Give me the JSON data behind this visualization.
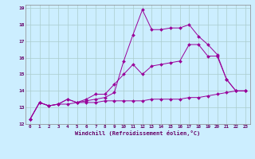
{
  "xlabel": "Windchill (Refroidissement éolien,°C)",
  "background_color": "#cceeff",
  "grid_color": "#aacccc",
  "line_color": "#990099",
  "xlim": [
    -0.5,
    23.5
  ],
  "ylim": [
    12,
    19.2
  ],
  "yticks": [
    12,
    13,
    14,
    15,
    16,
    17,
    18,
    19
  ],
  "xticks": [
    0,
    1,
    2,
    3,
    4,
    5,
    6,
    7,
    8,
    9,
    10,
    11,
    12,
    13,
    14,
    15,
    16,
    17,
    18,
    19,
    20,
    21,
    22,
    23
  ],
  "xticklabels": [
    "0",
    "1",
    "2",
    "3",
    "4",
    "5",
    "6",
    "7",
    "8",
    "9",
    "10",
    "11",
    "12",
    "13",
    "14",
    "15",
    "16",
    "17",
    "18",
    "19",
    "20",
    "21",
    "22",
    "23"
  ],
  "series": [
    {
      "x": [
        0,
        1,
        2,
        3,
        4,
        5,
        6,
        7,
        8,
        9,
        10,
        11,
        12,
        13,
        14,
        15,
        16,
        17,
        18,
        19,
        20,
        21,
        22,
        23
      ],
      "y": [
        12.3,
        13.3,
        13.1,
        13.2,
        13.5,
        13.3,
        13.4,
        13.5,
        13.6,
        13.9,
        15.8,
        17.4,
        18.9,
        17.7,
        17.7,
        17.8,
        17.8,
        18.0,
        17.3,
        16.8,
        16.2,
        14.7,
        14.0,
        14.0
      ]
    },
    {
      "x": [
        0,
        1,
        2,
        3,
        4,
        5,
        6,
        7,
        8,
        9,
        10,
        11,
        12,
        13,
        14,
        15,
        16,
        17,
        18,
        19,
        20,
        21,
        22,
        23
      ],
      "y": [
        12.3,
        13.3,
        13.1,
        13.2,
        13.5,
        13.3,
        13.5,
        13.8,
        13.8,
        14.4,
        15.0,
        15.6,
        15.0,
        15.5,
        15.6,
        15.7,
        15.8,
        16.8,
        16.8,
        16.1,
        16.1,
        14.7,
        14.0,
        14.0
      ]
    },
    {
      "x": [
        0,
        1,
        2,
        3,
        4,
        5,
        6,
        7,
        8,
        9,
        10,
        11,
        12,
        13,
        14,
        15,
        16,
        17,
        18,
        19,
        20,
        21,
        22,
        23
      ],
      "y": [
        12.3,
        13.3,
        13.1,
        13.2,
        13.2,
        13.3,
        13.3,
        13.3,
        13.4,
        13.4,
        13.4,
        13.4,
        13.4,
        13.5,
        13.5,
        13.5,
        13.5,
        13.6,
        13.6,
        13.7,
        13.8,
        13.9,
        14.0,
        14.0
      ]
    }
  ]
}
